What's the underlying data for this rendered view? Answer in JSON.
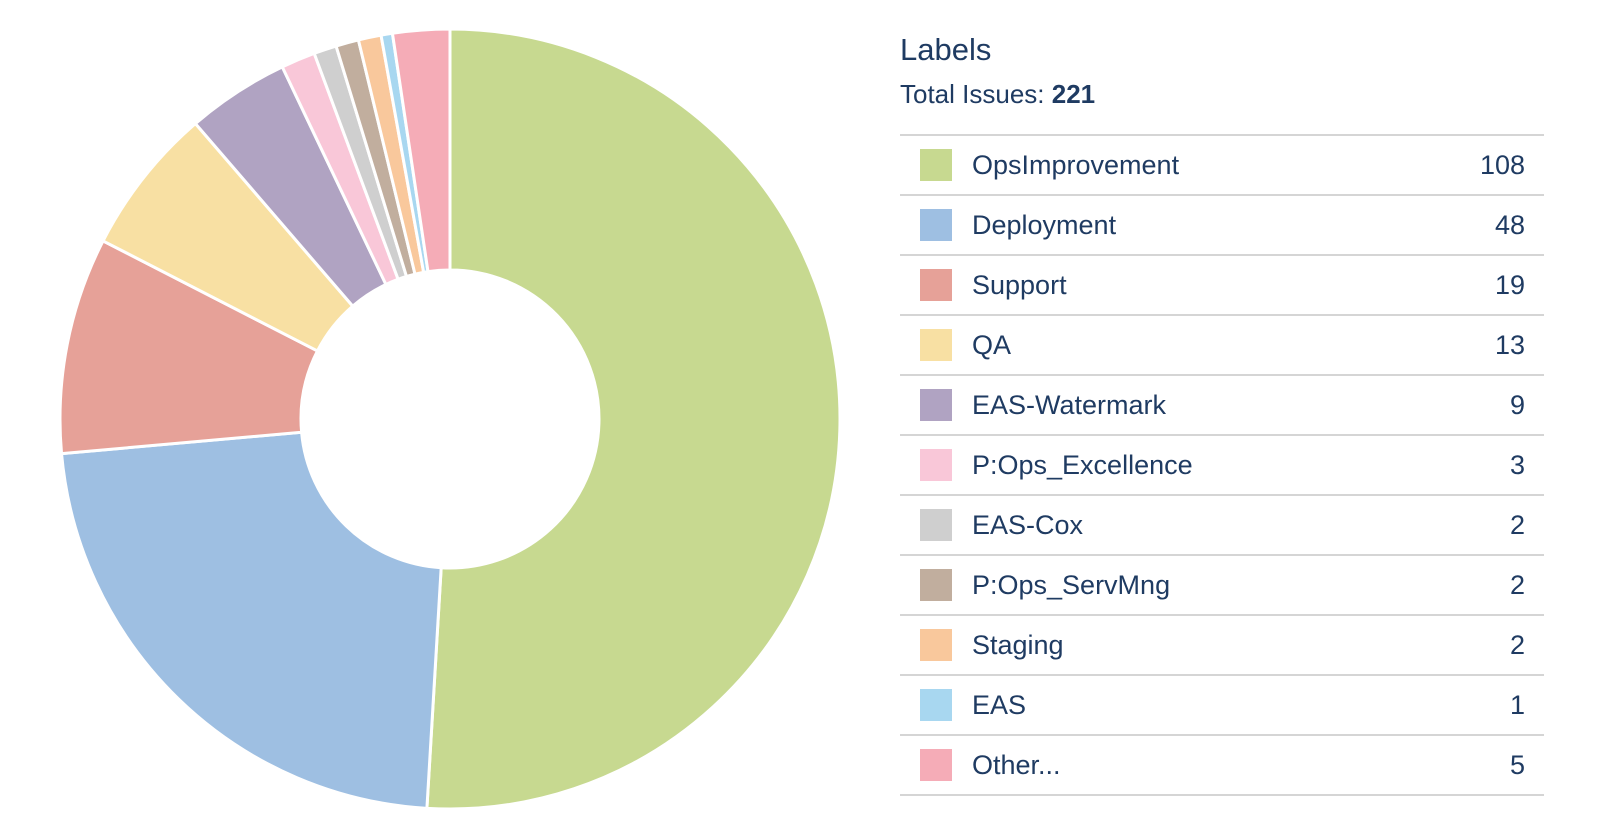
{
  "chart_data": {
    "type": "pie",
    "title": "Labels",
    "total_label": "Total Issues:",
    "total": 221,
    "slices": [
      {
        "label": "OpsImprovement",
        "value": 108,
        "color": "#c7d990"
      },
      {
        "label": "Deployment",
        "value": 48,
        "color": "#9ebfe2"
      },
      {
        "label": "Support",
        "value": 19,
        "color": "#e6a198"
      },
      {
        "label": "QA",
        "value": 13,
        "color": "#f8e0a3"
      },
      {
        "label": "EAS-Watermark",
        "value": 9,
        "color": "#b0a3c2"
      },
      {
        "label": "P:Ops_Excellence",
        "value": 3,
        "color": "#f9c7d8"
      },
      {
        "label": "EAS-Cox",
        "value": 2,
        "color": "#cfcfcf"
      },
      {
        "label": "P:Ops_ServMng",
        "value": 2,
        "color": "#c1ae9e"
      },
      {
        "label": "Staging",
        "value": 2,
        "color": "#f9c89c"
      },
      {
        "label": "EAS",
        "value": 1,
        "color": "#a8d7f0"
      },
      {
        "label": "Other...",
        "value": 5,
        "color": "#f5acb7"
      }
    ],
    "donut": true
  }
}
